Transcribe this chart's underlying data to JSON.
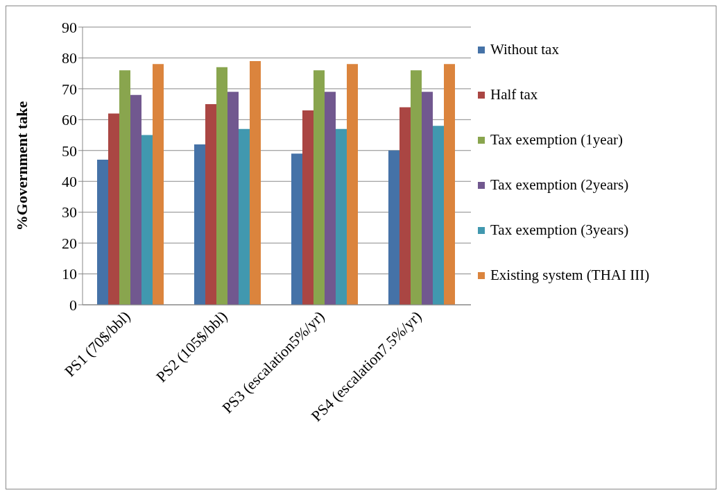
{
  "chart_data": {
    "type": "bar",
    "ylabel": "%Government take",
    "categories": [
      "PS1 (70$/bbl)",
      "PS2 (105$/bbl)",
      "PS3 (escalation5%/yr)",
      "PS4 (escalation7.5%/yr)"
    ],
    "series": [
      {
        "name": "Without tax",
        "color": "#4572a7",
        "values": [
          47,
          52,
          49,
          50
        ]
      },
      {
        "name": "Half tax",
        "color": "#aa4643",
        "values": [
          62,
          65,
          63,
          64
        ]
      },
      {
        "name": "Tax exemption (1year)",
        "color": "#89a54e",
        "values": [
          76,
          77,
          76,
          76
        ]
      },
      {
        "name": "Tax exemption  (2years)",
        "color": "#71588f",
        "values": [
          68,
          69,
          69,
          69
        ]
      },
      {
        "name": "Tax exemption (3years)",
        "color": "#4198af",
        "values": [
          55,
          57,
          57,
          58
        ]
      },
      {
        "name": "Existing system (THAI III)",
        "color": "#db843d",
        "values": [
          78,
          79,
          78,
          78
        ]
      }
    ],
    "ylim": [
      0,
      90
    ],
    "yticks": [
      0,
      10,
      20,
      30,
      40,
      50,
      60,
      70,
      80,
      90
    ],
    "grid": "y",
    "legend": "right"
  }
}
